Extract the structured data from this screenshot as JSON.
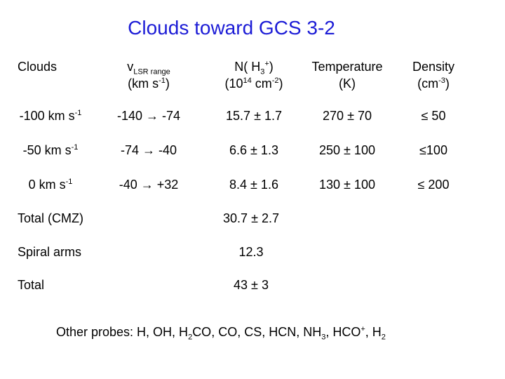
{
  "title": "Clouds toward GCS 3-2",
  "table": {
    "header": [
      [
        [
          "Clouds"
        ]
      ],
      [
        [
          "v",
          {
            "sub": "LSR range"
          }
        ],
        [
          "(km s",
          {
            "sup": "-1"
          },
          ")"
        ]
      ],
      [
        [
          "N( H",
          {
            "sub": "3"
          },
          {
            "sup": "+"
          },
          ")"
        ],
        [
          "(10",
          {
            "sup": "14"
          },
          " cm",
          {
            "sup": "-2"
          },
          ")"
        ]
      ],
      [
        [
          "Temperature"
        ],
        [
          "(K)"
        ]
      ],
      [
        [
          "Density"
        ],
        [
          "(cm",
          {
            "sup": "-3"
          },
          ")"
        ]
      ]
    ],
    "rows": [
      [
        [
          "-100 km s",
          {
            "sup": "-1"
          }
        ],
        [
          "-140 → -74"
        ],
        [
          "15.7 ± 1.7"
        ],
        [
          "270 ± 70"
        ],
        [
          "≤ 50"
        ]
      ],
      [
        [
          "-50 km s",
          {
            "sup": "-1"
          }
        ],
        [
          "-74 → -40"
        ],
        [
          "6.6 ± 1.3"
        ],
        [
          "250 ± 100"
        ],
        [
          "≤100"
        ]
      ],
      [
        [
          "0 km s",
          {
            "sup": "-1"
          }
        ],
        [
          "-40 → +32"
        ],
        [
          "8.4 ± 1.6"
        ],
        [
          "130 ± 100"
        ],
        [
          "≤ 200"
        ]
      ]
    ],
    "totals": [
      [
        [
          "Total (CMZ)"
        ],
        [
          "30.7 ± 2.7"
        ]
      ],
      [
        [
          "Spiral arms"
        ],
        [
          "12.3"
        ]
      ],
      [
        [
          "Total"
        ],
        [
          "43 ± 3"
        ]
      ]
    ]
  },
  "footer": [
    "Other probes:  H, OH, H",
    {
      "sub": "2"
    },
    "CO, CO, CS, HCN, NH",
    {
      "sub": "3"
    },
    ", HCO",
    {
      "sup": "+"
    },
    ", H",
    {
      "sub": "2"
    }
  ]
}
